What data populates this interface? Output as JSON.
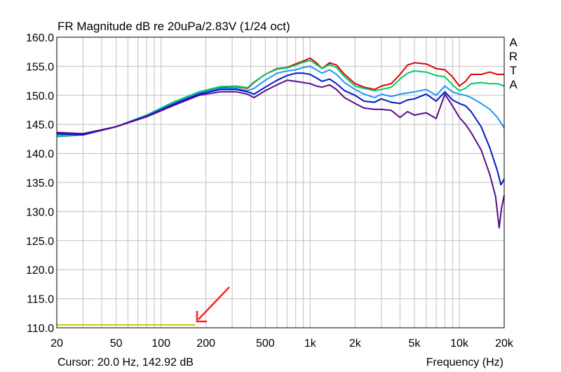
{
  "chart_data": {
    "type": "line",
    "title": "FR Magnitude dB re 20uPa/2.83V (1/24 oct)",
    "xlabel": "Frequency (Hz)",
    "ylabel": "",
    "x_scale": "log",
    "xlim": [
      20,
      20000
    ],
    "ylim": [
      110,
      160
    ],
    "grid": true,
    "x_ticks": [
      {
        "value": 20,
        "label": "20"
      },
      {
        "value": 50,
        "label": "50"
      },
      {
        "value": 100,
        "label": "100"
      },
      {
        "value": 200,
        "label": "200"
      },
      {
        "value": 500,
        "label": "500"
      },
      {
        "value": 1000,
        "label": "1k"
      },
      {
        "value": 2000,
        "label": "2k"
      },
      {
        "value": 5000,
        "label": "5k"
      },
      {
        "value": 10000,
        "label": "10k"
      },
      {
        "value": 20000,
        "label": "20k"
      }
    ],
    "y_ticks": [
      "110.0",
      "115.0",
      "120.0",
      "125.0",
      "130.0",
      "135.0",
      "140.0",
      "145.0",
      "150.0",
      "155.0",
      "160.0"
    ],
    "cursor_readout": "Cursor: 20.0 Hz, 142.92 dB",
    "side_label": [
      "A",
      "R",
      "T",
      "A"
    ],
    "series": [
      {
        "color": "#e00000",
        "points": [
          [
            20,
            142.9
          ],
          [
            30,
            143.2
          ],
          [
            50,
            144.6
          ],
          [
            80,
            146.6
          ],
          [
            120,
            148.6
          ],
          [
            180,
            150.5
          ],
          [
            250,
            151.4
          ],
          [
            320,
            151.5
          ],
          [
            380,
            151.2
          ],
          [
            420,
            152.2
          ],
          [
            500,
            153.6
          ],
          [
            600,
            154.6
          ],
          [
            700,
            154.8
          ],
          [
            800,
            155.4
          ],
          [
            900,
            155.9
          ],
          [
            1000,
            156.4
          ],
          [
            1100,
            155.6
          ],
          [
            1200,
            154.6
          ],
          [
            1350,
            155.6
          ],
          [
            1500,
            155.2
          ],
          [
            1700,
            153.6
          ],
          [
            2000,
            152.0
          ],
          [
            2300,
            151.4
          ],
          [
            2700,
            151.0
          ],
          [
            3000,
            151.6
          ],
          [
            3500,
            152.0
          ],
          [
            4000,
            153.6
          ],
          [
            4500,
            155.2
          ],
          [
            5000,
            155.6
          ],
          [
            6000,
            155.4
          ],
          [
            7000,
            154.6
          ],
          [
            8000,
            154.4
          ],
          [
            9000,
            153.2
          ],
          [
            10000,
            151.6
          ],
          [
            11000,
            152.4
          ],
          [
            12000,
            153.6
          ],
          [
            14000,
            153.6
          ],
          [
            16000,
            154.0
          ],
          [
            18000,
            153.6
          ],
          [
            20000,
            153.6
          ]
        ]
      },
      {
        "color": "#00cc66",
        "points": [
          [
            20,
            142.9
          ],
          [
            30,
            143.2
          ],
          [
            50,
            144.6
          ],
          [
            80,
            146.6
          ],
          [
            120,
            148.8
          ],
          [
            180,
            150.6
          ],
          [
            250,
            151.5
          ],
          [
            320,
            151.6
          ],
          [
            380,
            151.3
          ],
          [
            420,
            152.3
          ],
          [
            500,
            153.6
          ],
          [
            600,
            154.5
          ],
          [
            700,
            154.7
          ],
          [
            800,
            155.2
          ],
          [
            900,
            155.7
          ],
          [
            1000,
            156.0
          ],
          [
            1100,
            155.3
          ],
          [
            1200,
            154.6
          ],
          [
            1350,
            155.3
          ],
          [
            1500,
            154.8
          ],
          [
            1700,
            153.2
          ],
          [
            2000,
            151.6
          ],
          [
            2300,
            151.2
          ],
          [
            2700,
            150.8
          ],
          [
            3000,
            151.0
          ],
          [
            3500,
            151.4
          ],
          [
            4000,
            152.8
          ],
          [
            4500,
            153.8
          ],
          [
            5000,
            154.2
          ],
          [
            6000,
            154.0
          ],
          [
            7000,
            153.4
          ],
          [
            8000,
            153.2
          ],
          [
            9000,
            151.8
          ],
          [
            10000,
            150.8
          ],
          [
            11000,
            151.2
          ],
          [
            12000,
            152.0
          ],
          [
            14000,
            152.2
          ],
          [
            16000,
            152.0
          ],
          [
            18000,
            152.0
          ],
          [
            20000,
            151.6
          ]
        ]
      },
      {
        "color": "#2196f3",
        "points": [
          [
            20,
            143.2
          ],
          [
            30,
            143.2
          ],
          [
            50,
            144.6
          ],
          [
            80,
            146.5
          ],
          [
            120,
            148.6
          ],
          [
            180,
            150.4
          ],
          [
            250,
            151.2
          ],
          [
            320,
            151.2
          ],
          [
            380,
            150.8
          ],
          [
            420,
            151.2
          ],
          [
            500,
            152.6
          ],
          [
            600,
            153.8
          ],
          [
            700,
            154.2
          ],
          [
            800,
            154.4
          ],
          [
            900,
            154.8
          ],
          [
            1000,
            155.0
          ],
          [
            1100,
            154.4
          ],
          [
            1200,
            153.8
          ],
          [
            1350,
            154.4
          ],
          [
            1500,
            153.6
          ],
          [
            1700,
            152.2
          ],
          [
            2000,
            151.0
          ],
          [
            2300,
            150.2
          ],
          [
            2700,
            149.6
          ],
          [
            3000,
            150.2
          ],
          [
            3500,
            149.8
          ],
          [
            4000,
            150.2
          ],
          [
            4500,
            150.4
          ],
          [
            5000,
            150.6
          ],
          [
            6000,
            151.0
          ],
          [
            7000,
            150.0
          ],
          [
            8000,
            151.6
          ],
          [
            9000,
            150.6
          ],
          [
            10000,
            150.2
          ],
          [
            11000,
            150.0
          ],
          [
            12000,
            149.6
          ],
          [
            14000,
            148.6
          ],
          [
            16000,
            147.6
          ],
          [
            18000,
            146.2
          ],
          [
            20000,
            144.4
          ]
        ]
      },
      {
        "color": "#0018c8",
        "points": [
          [
            20,
            143.4
          ],
          [
            30,
            143.2
          ],
          [
            50,
            144.6
          ],
          [
            80,
            146.4
          ],
          [
            120,
            148.4
          ],
          [
            180,
            150.2
          ],
          [
            250,
            151.0
          ],
          [
            320,
            151.0
          ],
          [
            380,
            150.6
          ],
          [
            420,
            150.2
          ],
          [
            500,
            151.4
          ],
          [
            600,
            152.6
          ],
          [
            700,
            153.4
          ],
          [
            800,
            153.8
          ],
          [
            900,
            153.8
          ],
          [
            1000,
            153.6
          ],
          [
            1100,
            153.0
          ],
          [
            1200,
            152.4
          ],
          [
            1350,
            152.8
          ],
          [
            1500,
            152.0
          ],
          [
            1700,
            150.8
          ],
          [
            2000,
            150.0
          ],
          [
            2300,
            149.0
          ],
          [
            2700,
            148.8
          ],
          [
            3000,
            149.4
          ],
          [
            3500,
            148.8
          ],
          [
            4000,
            148.6
          ],
          [
            4500,
            149.2
          ],
          [
            5000,
            149.4
          ],
          [
            6000,
            150.2
          ],
          [
            7000,
            149.0
          ],
          [
            8000,
            150.6
          ],
          [
            9000,
            149.2
          ],
          [
            10000,
            148.6
          ],
          [
            11000,
            148.2
          ],
          [
            12000,
            147.2
          ],
          [
            14000,
            144.6
          ],
          [
            16000,
            141.0
          ],
          [
            18000,
            137.0
          ],
          [
            19000,
            134.6
          ],
          [
            20000,
            135.6
          ]
        ]
      },
      {
        "color": "#5a0a8c",
        "points": [
          [
            20,
            143.6
          ],
          [
            30,
            143.4
          ],
          [
            50,
            144.6
          ],
          [
            80,
            146.3
          ],
          [
            120,
            148.2
          ],
          [
            180,
            150.0
          ],
          [
            250,
            150.6
          ],
          [
            320,
            150.6
          ],
          [
            380,
            150.2
          ],
          [
            420,
            149.6
          ],
          [
            500,
            150.8
          ],
          [
            600,
            151.8
          ],
          [
            700,
            152.6
          ],
          [
            800,
            152.4
          ],
          [
            900,
            152.2
          ],
          [
            1000,
            152.0
          ],
          [
            1100,
            151.6
          ],
          [
            1200,
            151.4
          ],
          [
            1350,
            151.8
          ],
          [
            1500,
            151.0
          ],
          [
            1700,
            149.6
          ],
          [
            2000,
            148.6
          ],
          [
            2300,
            147.8
          ],
          [
            2700,
            147.6
          ],
          [
            3000,
            147.6
          ],
          [
            3500,
            147.4
          ],
          [
            4000,
            146.2
          ],
          [
            4500,
            147.2
          ],
          [
            5000,
            146.6
          ],
          [
            6000,
            147.0
          ],
          [
            7000,
            146.0
          ],
          [
            8000,
            150.2
          ],
          [
            9000,
            148.2
          ],
          [
            10000,
            146.2
          ],
          [
            11000,
            145.0
          ],
          [
            12000,
            143.6
          ],
          [
            14000,
            140.6
          ],
          [
            16000,
            136.4
          ],
          [
            17500,
            132.6
          ],
          [
            18500,
            127.2
          ],
          [
            19200,
            130.6
          ],
          [
            20000,
            132.8
          ]
        ]
      },
      {
        "color": "#c8c800",
        "points": [
          [
            20,
            110.5
          ],
          [
            170,
            110.5
          ]
        ]
      }
    ]
  },
  "annotation": {
    "color": "#ff2020"
  }
}
